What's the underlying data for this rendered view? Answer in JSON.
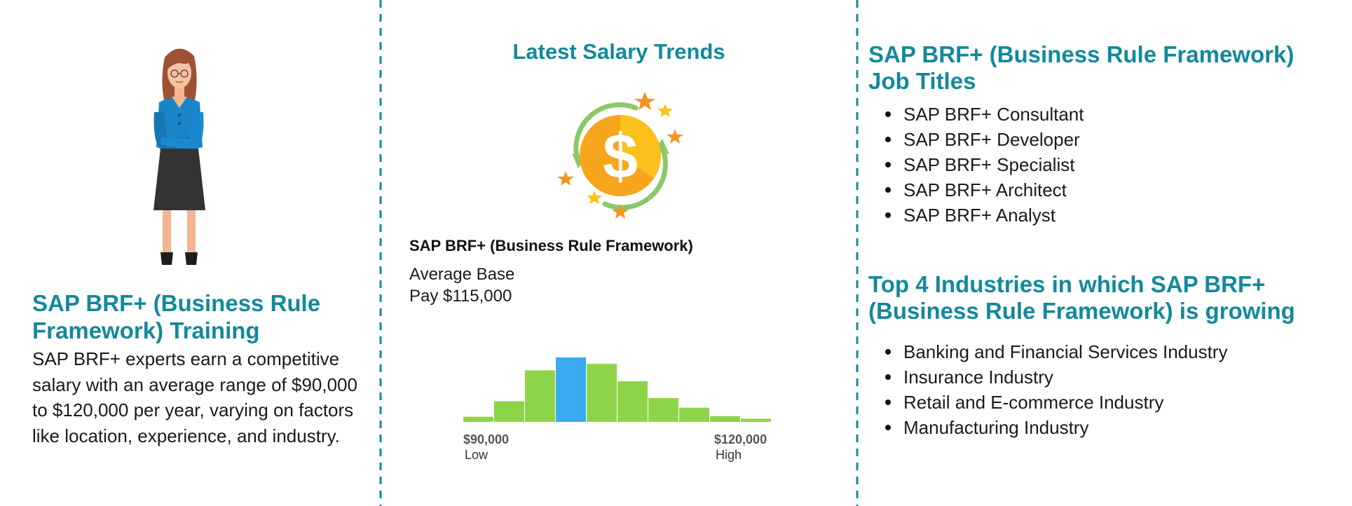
{
  "colors": {
    "heading": "#13899b",
    "divider": "#13899b",
    "bar": "#8ed449",
    "bar_highlight": "#37aaf0",
    "coin": "#f7a51c",
    "arrow": "#8cc86a",
    "star": "#f5941f"
  },
  "left": {
    "illustration": "woman-arms-crossed",
    "heading": "SAP BRF+ (Business Rule Framework) Training",
    "body": "SAP BRF+ experts earn a competitive salary with an average range of $90,000 to $120,000 per year, varying on factors like location, experience, and industry."
  },
  "middle": {
    "title": "Latest Salary Trends",
    "icon": "dollar-coin-cycle-icon",
    "job_title": "SAP BRF+ (Business Rule Framework)",
    "average_pay": "Average Base\n Pay $115,000",
    "histogram": {
      "bars": [
        0.08,
        0.32,
        0.8,
        1.0,
        0.9,
        0.63,
        0.37,
        0.22,
        0.09,
        0.05
      ],
      "highlight_index": 3
    },
    "range": {
      "min_value": "$90,000",
      "min_label": "Low",
      "max_value": "$120,000",
      "max_label": "High"
    }
  },
  "right": {
    "jobs_heading": "SAP BRF+ (Business Rule Framework) Job Titles",
    "jobs": [
      "SAP BRF+ Consultant",
      "SAP BRF+ Developer",
      "SAP BRF+ Specialist",
      "SAP BRF+ Architect",
      "SAP BRF+ Analyst"
    ],
    "industries_heading": "Top 4 Industries in which SAP BRF+ (Business Rule Framework) is growing",
    "industries": [
      "Banking and Financial Services Industry",
      "Insurance Industry",
      "Retail and E-commerce Industry",
      "Manufacturing Industry"
    ]
  }
}
